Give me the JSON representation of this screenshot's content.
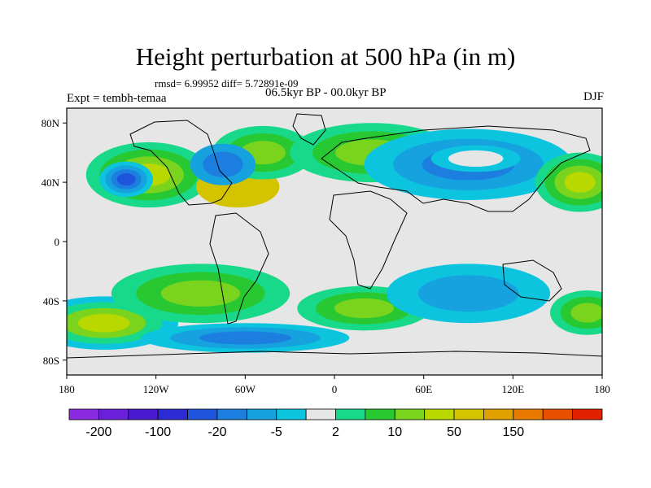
{
  "title": "Height perturbation at 500 hPa (in m)",
  "stats": "rmsd= 6.99952 diff= 5.72891e-09",
  "left_label": "Expt = tembh-temaa",
  "center_label": "06.5kyr BP - 00.0kyr BP",
  "right_label": "DJF",
  "axes": {
    "lon_ticks": [
      {
        "value": -180,
        "label": "180"
      },
      {
        "value": -120,
        "label": "120W"
      },
      {
        "value": -60,
        "label": "60W"
      },
      {
        "value": 0,
        "label": "0"
      },
      {
        "value": 60,
        "label": "60E"
      },
      {
        "value": 120,
        "label": "120E"
      },
      {
        "value": 180,
        "label": "180"
      }
    ],
    "lat_ticks": [
      {
        "value": 80,
        "label": "80N"
      },
      {
        "value": 40,
        "label": "40N"
      },
      {
        "value": 0,
        "label": "0"
      },
      {
        "value": -40,
        "label": "40S"
      },
      {
        "value": -80,
        "label": "80S"
      }
    ],
    "lon_range": [
      -180,
      180
    ],
    "lat_range": [
      -90,
      90
    ]
  },
  "colorbar": {
    "colors": [
      "#8a2be2",
      "#6a20d8",
      "#4a18d0",
      "#2b2cd6",
      "#1f55dd",
      "#1c7fe0",
      "#15a2df",
      "#0cc4de",
      "#e6e6e6",
      "#18d88a",
      "#28c832",
      "#7ad41e",
      "#b8d800",
      "#d4c400",
      "#e0a000",
      "#e87a00",
      "#e85000",
      "#e02000"
    ],
    "labels": [
      {
        "index": 1,
        "text": "-200"
      },
      {
        "index": 3,
        "text": "-100"
      },
      {
        "index": 5,
        "text": "-20"
      },
      {
        "index": 7,
        "text": "-5"
      },
      {
        "index": 9,
        "text": "2"
      },
      {
        "index": 11,
        "text": "10"
      },
      {
        "index": 13,
        "text": "50"
      },
      {
        "index": 15,
        "text": "150"
      }
    ]
  },
  "field": {
    "background": "#e6e6e6",
    "blobs": [
      {
        "lon": -125,
        "lat": 45,
        "rlon": 42,
        "rlat": 22,
        "colors": [
          "#18d88a",
          "#28c832",
          "#7ad41e",
          "#b8d800"
        ]
      },
      {
        "lon": -65,
        "lat": 37,
        "rlon": 28,
        "rlat": 14,
        "colors": [
          "#d4c400"
        ]
      },
      {
        "lon": -48,
        "lat": 60,
        "rlon": 34,
        "rlat": 18,
        "colors": [
          "#18d88a",
          "#28c832",
          "#7ad41e"
        ]
      },
      {
        "lon": -75,
        "lat": 52,
        "rlon": 22,
        "rlat": 14,
        "colors": [
          "#15a2df",
          "#1c7fe0"
        ]
      },
      {
        "lon": -140,
        "lat": 42,
        "rlon": 18,
        "rlat": 12,
        "colors": [
          "#0cc4de",
          "#15a2df",
          "#1c7fe0",
          "#1f55dd"
        ]
      },
      {
        "lon": 25,
        "lat": 60,
        "rlon": 55,
        "rlat": 20,
        "colors": [
          "#18d88a",
          "#28c832",
          "#7ad41e"
        ]
      },
      {
        "lon": 90,
        "lat": 52,
        "rlon": 70,
        "rlat": 24,
        "colors": [
          "#0cc4de",
          "#15a2df",
          "#1c7fe0"
        ]
      },
      {
        "lon": 95,
        "lat": 56,
        "rlon": 30,
        "rlat": 9,
        "colors": [
          "#0cc4de",
          "#e6e6e6"
        ]
      },
      {
        "lon": 165,
        "lat": 40,
        "rlon": 30,
        "rlat": 20,
        "colors": [
          "#18d88a",
          "#28c832",
          "#7ad41e",
          "#b8d800"
        ]
      },
      {
        "lon": -155,
        "lat": -55,
        "rlon": 50,
        "rlat": 18,
        "colors": [
          "#0cc4de",
          "#18d88a",
          "#7ad41e",
          "#b8d800"
        ]
      },
      {
        "lon": -90,
        "lat": -35,
        "rlon": 60,
        "rlat": 20,
        "colors": [
          "#18d88a",
          "#28c832",
          "#7ad41e"
        ]
      },
      {
        "lon": -60,
        "lat": -65,
        "rlon": 70,
        "rlat": 10,
        "colors": [
          "#0cc4de",
          "#15a2df",
          "#1c7fe0"
        ]
      },
      {
        "lon": 20,
        "lat": -45,
        "rlon": 45,
        "rlat": 15,
        "colors": [
          "#18d88a",
          "#28c832",
          "#7ad41e"
        ]
      },
      {
        "lon": 90,
        "lat": -35,
        "rlon": 55,
        "rlat": 20,
        "colors": [
          "#0cc4de",
          "#15a2df"
        ]
      },
      {
        "lon": 170,
        "lat": -48,
        "rlon": 25,
        "rlat": 15,
        "colors": [
          "#18d88a",
          "#28c832",
          "#7ad41e"
        ]
      }
    ]
  }
}
